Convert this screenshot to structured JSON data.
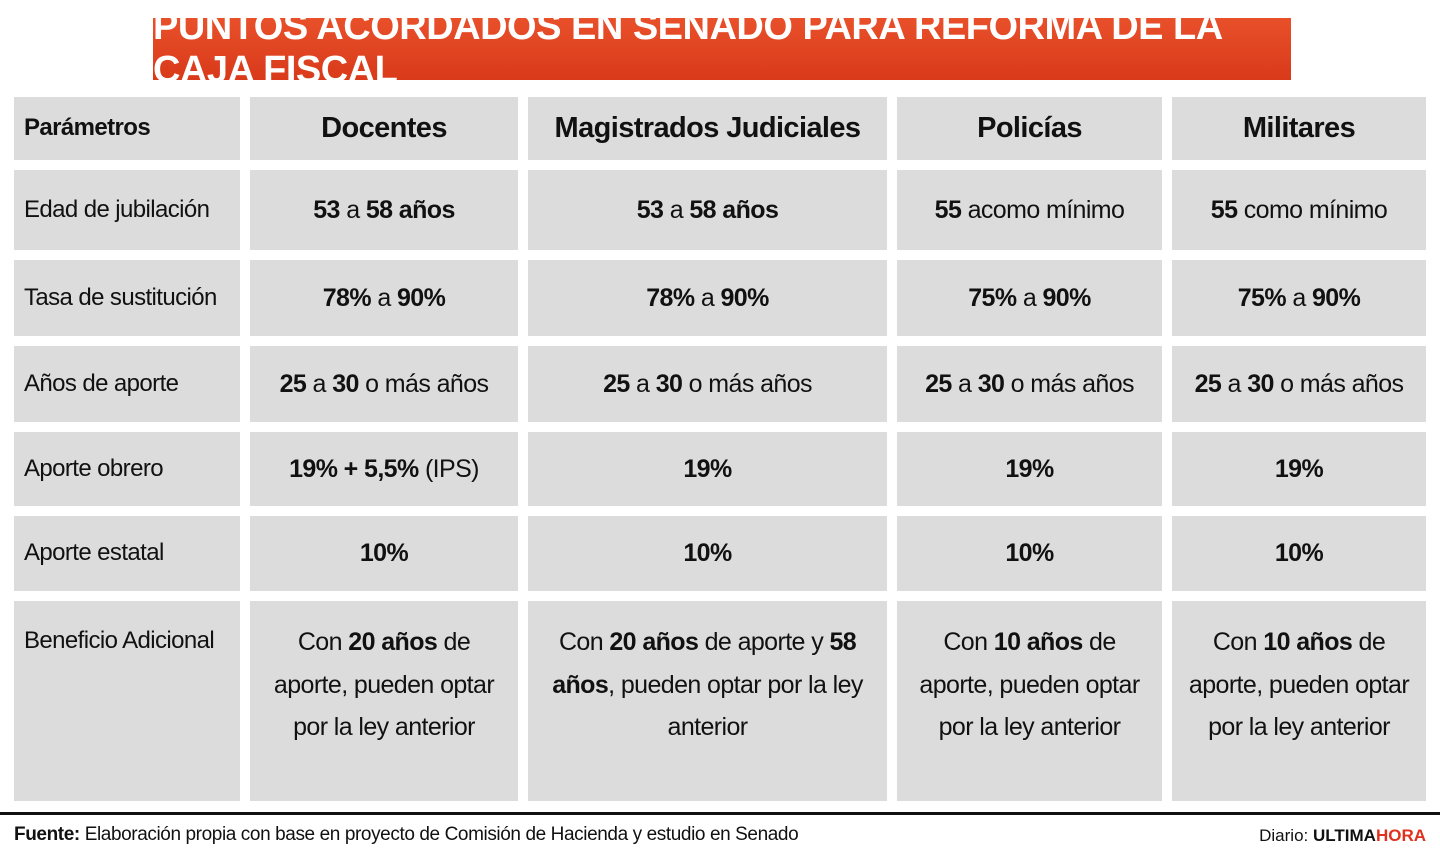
{
  "header": {
    "title": "PUNTOS ACORDADOS EN SENADO PARA REFORMA DE LA CAJA FISCAL"
  },
  "table": {
    "columns": [
      "Parámetros",
      "Docentes",
      "Magistrados Judiciales",
      "Policías",
      "Militares"
    ],
    "rows": [
      {
        "label": "Edad de jubilación",
        "cells": [
          [
            {
              "t": "53",
              "b": true
            },
            {
              "t": " a ",
              "b": false
            },
            {
              "t": "58 años",
              "b": true
            }
          ],
          [
            {
              "t": "53",
              "b": true
            },
            {
              "t": " a ",
              "b": false
            },
            {
              "t": "58 años",
              "b": true
            }
          ],
          [
            {
              "t": "55",
              "b": true
            },
            {
              "t": " acomo mínimo",
              "b": false
            }
          ],
          [
            {
              "t": "55",
              "b": true
            },
            {
              "t": " como mínimo",
              "b": false
            }
          ]
        ]
      },
      {
        "label": "Tasa de sustitución",
        "cells": [
          [
            {
              "t": "78%",
              "b": true
            },
            {
              "t": " a ",
              "b": false
            },
            {
              "t": "90%",
              "b": true
            }
          ],
          [
            {
              "t": "78%",
              "b": true
            },
            {
              "t": " a ",
              "b": false
            },
            {
              "t": "90%",
              "b": true
            }
          ],
          [
            {
              "t": "75%",
              "b": true
            },
            {
              "t": " a ",
              "b": false
            },
            {
              "t": "90%",
              "b": true
            }
          ],
          [
            {
              "t": "75%",
              "b": true
            },
            {
              "t": " a ",
              "b": false
            },
            {
              "t": "90%",
              "b": true
            }
          ]
        ]
      },
      {
        "label": "Años de aporte",
        "cells": [
          [
            {
              "t": "25",
              "b": true
            },
            {
              "t": " a ",
              "b": false
            },
            {
              "t": "30",
              "b": true
            },
            {
              "t": " o más años",
              "b": false
            }
          ],
          [
            {
              "t": "25",
              "b": true
            },
            {
              "t": " a ",
              "b": false
            },
            {
              "t": "30",
              "b": true
            },
            {
              "t": " o más años",
              "b": false
            }
          ],
          [
            {
              "t": "25",
              "b": true
            },
            {
              "t": " a ",
              "b": false
            },
            {
              "t": "30",
              "b": true
            },
            {
              "t": " o más años",
              "b": false
            }
          ],
          [
            {
              "t": "25",
              "b": true
            },
            {
              "t": " a ",
              "b": false
            },
            {
              "t": "30",
              "b": true
            },
            {
              "t": " o más años",
              "b": false
            }
          ]
        ]
      },
      {
        "label": "Aporte obrero",
        "cells": [
          [
            {
              "t": "19% + 5,5%",
              "b": true
            },
            {
              "t": " (IPS)",
              "b": false
            }
          ],
          [
            {
              "t": "19%",
              "b": true
            }
          ],
          [
            {
              "t": "19%",
              "b": true
            }
          ],
          [
            {
              "t": "19%",
              "b": true
            }
          ]
        ]
      },
      {
        "label": "Aporte estatal",
        "cells": [
          [
            {
              "t": "10%",
              "b": true
            }
          ],
          [
            {
              "t": "10%",
              "b": true
            }
          ],
          [
            {
              "t": "10%",
              "b": true
            }
          ],
          [
            {
              "t": "10%",
              "b": true
            }
          ]
        ]
      },
      {
        "label": "Beneficio Adicional",
        "cells": [
          [
            {
              "t": "Con ",
              "b": false
            },
            {
              "t": "20 años",
              "b": true
            },
            {
              "t": " de aporte, pueden optar por la ley anterior",
              "b": false
            }
          ],
          [
            {
              "t": "Con ",
              "b": false
            },
            {
              "t": "20 años",
              "b": true
            },
            {
              "t": " de aporte y ",
              "b": false
            },
            {
              "t": "58 años",
              "b": true
            },
            {
              "t": ", pueden optar por la ley anterior",
              "b": false
            }
          ],
          [
            {
              "t": "Con ",
              "b": false
            },
            {
              "t": "10 años",
              "b": true
            },
            {
              "t": " de aporte, pueden optar por la ley anterior",
              "b": false
            }
          ],
          [
            {
              "t": "Con ",
              "b": false
            },
            {
              "t": "10 años",
              "b": true
            },
            {
              "t": " de aporte, pueden optar por la ley anterior",
              "b": false
            }
          ]
        ]
      }
    ]
  },
  "footer": {
    "source_label": "Fuente:",
    "source_text": " Elaboración propia con base en proyecto de Comisión de Hacienda y estudio en Senado",
    "brand_prefix": "Diario: ",
    "brand_a": "ULTIMA",
    "brand_b": "HORA"
  }
}
